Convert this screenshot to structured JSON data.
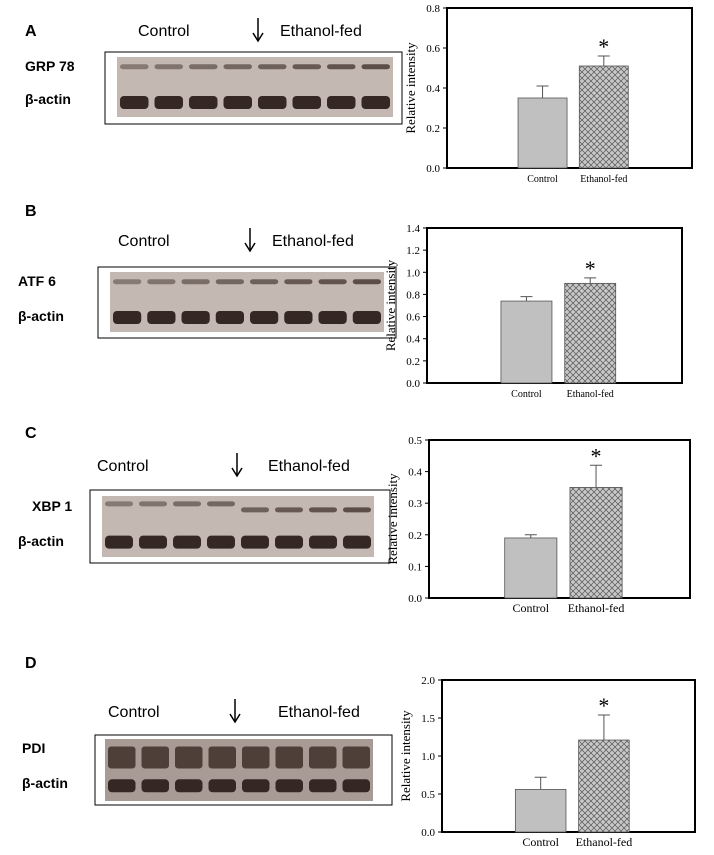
{
  "blots": [
    {
      "panel": "A",
      "groups": [
        "Control",
        "Ethanol-fed"
      ],
      "rows": [
        "GRP 78",
        "β-actin"
      ]
    },
    {
      "panel": "B",
      "groups": [
        "Control",
        "Ethanol-fed"
      ],
      "rows": [
        "ATF 6",
        "β-actin"
      ]
    },
    {
      "panel": "C",
      "groups": [
        "Control",
        "Ethanol-fed"
      ],
      "rows": [
        "XBP 1",
        "β-actin"
      ]
    },
    {
      "panel": "D",
      "groups": [
        "Control",
        "Ethanol-fed"
      ],
      "rows": [
        "PDI",
        "β-actin"
      ]
    }
  ],
  "chart_data": [
    {
      "type": "bar",
      "ylabel": "Relative intensity",
      "categories": [
        "Control",
        "Ethanol-fed"
      ],
      "values": [
        0.35,
        0.51
      ],
      "errors": [
        0.06,
        0.05
      ],
      "colors": [
        "#c0c0c0",
        "#bdbdbd"
      ],
      "hatch": [
        false,
        true
      ],
      "annotation": "*",
      "ylim": [
        0,
        0.8
      ],
      "yticks": [
        {
          "value": 0,
          "label": "0.0"
        },
        {
          "value": 0.2,
          "label": "0.2"
        },
        {
          "value": 0.4,
          "label": "0.4"
        },
        {
          "value": 0.6,
          "label": "0.6"
        },
        {
          "value": 0.8,
          "label": "0.8"
        }
      ]
    },
    {
      "type": "bar",
      "ylabel": "Relative intensity",
      "categories": [
        "Control",
        "Ethanol-fed"
      ],
      "values": [
        0.74,
        0.9
      ],
      "errors": [
        0.04,
        0.05
      ],
      "colors": [
        "#c0c0c0",
        "#bdbdbd"
      ],
      "hatch": [
        false,
        true
      ],
      "annotation": "*",
      "ylim": [
        0,
        1.4
      ],
      "yticks": [
        {
          "value": 0,
          "label": "0.0"
        },
        {
          "value": 0.2,
          "label": "0.2"
        },
        {
          "value": 0.4,
          "label": "0.4"
        },
        {
          "value": 0.6,
          "label": "0.6"
        },
        {
          "value": 0.8,
          "label": "0.8"
        },
        {
          "value": 1,
          "label": "1.0"
        },
        {
          "value": 1.2,
          "label": "1.2"
        },
        {
          "value": 1.4,
          "label": "1.4"
        }
      ]
    },
    {
      "type": "bar",
      "ylabel": "Relative intensity",
      "categories": [
        "Control",
        "Ethanol-fed"
      ],
      "values": [
        0.19,
        0.35
      ],
      "errors": [
        0.01,
        0.07
      ],
      "colors": [
        "#c0c0c0",
        "#bdbdbd"
      ],
      "hatch": [
        false,
        true
      ],
      "annotation": "*",
      "ylim": [
        0,
        0.5
      ],
      "yticks": [
        {
          "value": 0,
          "label": "0.0"
        },
        {
          "value": 0.1,
          "label": "0.1"
        },
        {
          "value": 0.2,
          "label": "0.2"
        },
        {
          "value": 0.3,
          "label": "0.3"
        },
        {
          "value": 0.4,
          "label": "0.4"
        },
        {
          "value": 0.5,
          "label": "0.5"
        }
      ]
    },
    {
      "type": "bar",
      "ylabel": "Relative intensity",
      "categories": [
        "Control",
        "Ethanol-fed"
      ],
      "values": [
        0.56,
        1.21
      ],
      "errors": [
        0.16,
        0.33
      ],
      "colors": [
        "#c0c0c0",
        "#bdbdbd"
      ],
      "hatch": [
        false,
        true
      ],
      "annotation": "*",
      "ylim": [
        0,
        2
      ],
      "yticks": [
        {
          "value": 0,
          "label": "0.0"
        },
        {
          "value": 0.5,
          "label": "0.5"
        },
        {
          "value": 1,
          "label": "1.0"
        },
        {
          "value": 1.5,
          "label": "1.5"
        },
        {
          "value": 2,
          "label": "2.0"
        }
      ]
    }
  ]
}
